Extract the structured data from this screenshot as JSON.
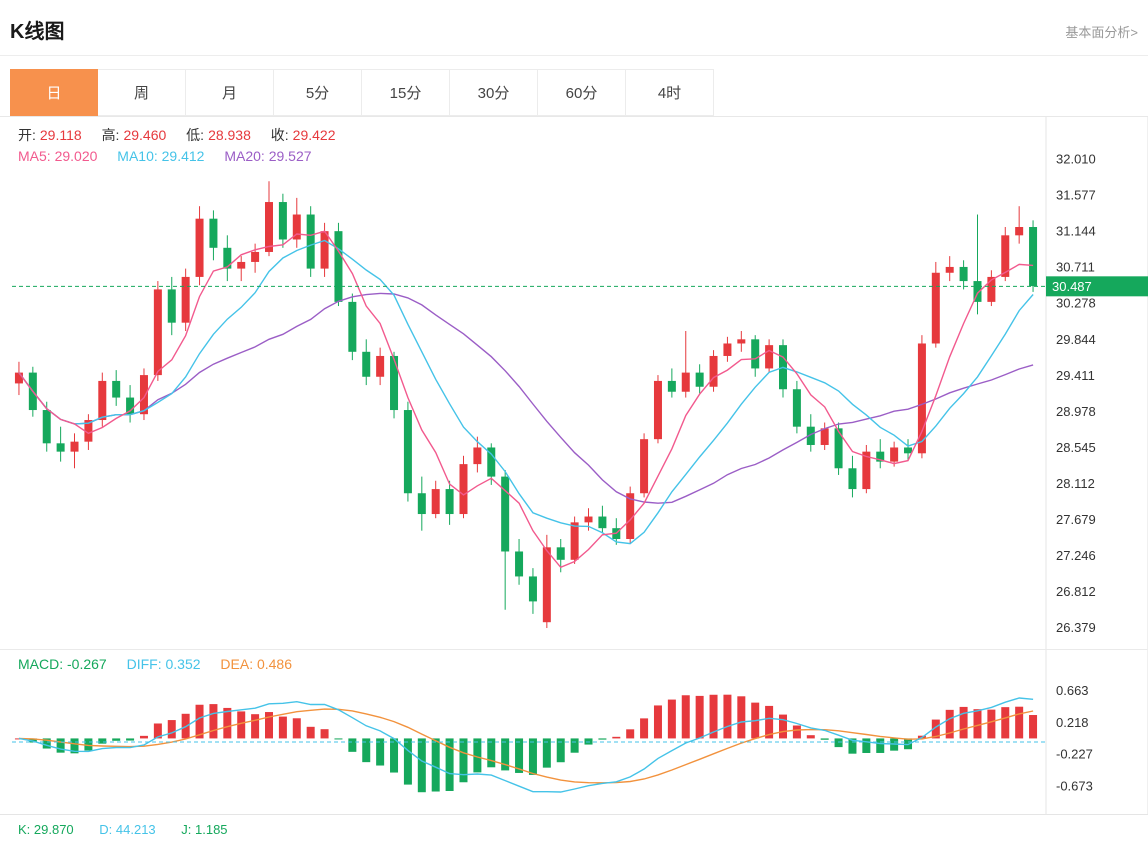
{
  "header": {
    "title": "K线图",
    "link": "基本面分析>"
  },
  "tabs": {
    "items": [
      "日",
      "周",
      "月",
      "5分",
      "15分",
      "30分",
      "60分",
      "4时"
    ],
    "active": "日"
  },
  "ohlc": {
    "open_label": "开:",
    "open": "29.118",
    "high_label": "高:",
    "high": "29.460",
    "low_label": "低:",
    "low": "28.938",
    "close_label": "收:",
    "close": "29.422"
  },
  "ma": {
    "ma5": "MA5: 29.020",
    "ma10": "MA10: 29.412",
    "ma20": "MA20: 29.527"
  },
  "macd_legend": {
    "macd": "MACD: -0.267",
    "diff": "DIFF: 0.352",
    "dea": "DEA: 0.486"
  },
  "kdj": {
    "k": "K: 29.870",
    "d": "D: 44.213",
    "j": "J: 1.185"
  },
  "price_tag": "30.487",
  "colors": {
    "red": "#e6393d",
    "green": "#15a85c",
    "pink": "#f25a8e",
    "cyan": "#45c3e8",
    "purple": "#9b5ec6",
    "orange": "#f2923d",
    "tab_orange": "#f7914d",
    "border": "#e6e6e6",
    "text": "#333333"
  },
  "chart_data": {
    "type": "candlestick",
    "title": "K线图",
    "period": "日",
    "y_axis_ticks": [
      "32.010",
      "31.577",
      "31.144",
      "30.711",
      "30.278",
      "29.844",
      "29.411",
      "28.978",
      "28.545",
      "28.112",
      "27.679",
      "27.246",
      "26.812",
      "26.379"
    ],
    "price_range": [
      26.2,
      32.45
    ],
    "last_price": 30.487,
    "overlays": [
      "MA5",
      "MA10",
      "MA20"
    ],
    "legend_values": {
      "open": 29.118,
      "high": 29.46,
      "low": 28.938,
      "close": 29.422,
      "ma5": 29.02,
      "ma10": 29.412,
      "ma20": 29.527
    },
    "candles": [
      [
        29.32,
        29.58,
        29.18,
        29.45
      ],
      [
        29.45,
        29.52,
        28.92,
        29.0
      ],
      [
        29.0,
        29.1,
        28.5,
        28.6
      ],
      [
        28.6,
        28.8,
        28.38,
        28.5
      ],
      [
        28.5,
        28.72,
        28.3,
        28.62
      ],
      [
        28.62,
        28.95,
        28.52,
        28.88
      ],
      [
        28.88,
        29.45,
        28.8,
        29.35
      ],
      [
        29.35,
        29.48,
        29.05,
        29.15
      ],
      [
        29.15,
        29.3,
        28.85,
        28.95
      ],
      [
        28.95,
        29.5,
        28.88,
        29.42
      ],
      [
        29.42,
        30.55,
        29.35,
        30.45
      ],
      [
        30.45,
        30.6,
        29.9,
        30.05
      ],
      [
        30.05,
        30.7,
        29.95,
        30.6
      ],
      [
        30.6,
        31.45,
        30.5,
        31.3
      ],
      [
        31.3,
        31.4,
        30.8,
        30.95
      ],
      [
        30.95,
        31.1,
        30.55,
        30.7
      ],
      [
        30.7,
        30.85,
        30.55,
        30.78
      ],
      [
        30.78,
        31.0,
        30.65,
        30.9
      ],
      [
        30.9,
        31.75,
        30.85,
        31.5
      ],
      [
        31.5,
        31.6,
        30.95,
        31.05
      ],
      [
        31.05,
        31.55,
        30.95,
        31.35
      ],
      [
        31.35,
        31.45,
        30.6,
        30.7
      ],
      [
        30.7,
        31.25,
        30.6,
        31.15
      ],
      [
        31.15,
        31.25,
        30.25,
        30.3
      ],
      [
        30.3,
        30.4,
        29.6,
        29.7
      ],
      [
        29.7,
        29.85,
        29.3,
        29.4
      ],
      [
        29.4,
        29.75,
        29.3,
        29.65
      ],
      [
        29.65,
        29.7,
        28.9,
        29.0
      ],
      [
        29.0,
        29.1,
        27.9,
        28.0
      ],
      [
        28.0,
        28.2,
        27.55,
        27.75
      ],
      [
        27.75,
        28.15,
        27.7,
        28.05
      ],
      [
        28.05,
        28.15,
        27.62,
        27.75
      ],
      [
        27.75,
        28.45,
        27.7,
        28.35
      ],
      [
        28.35,
        28.68,
        28.25,
        28.55
      ],
      [
        28.55,
        28.6,
        28.1,
        28.2
      ],
      [
        28.2,
        28.28,
        26.6,
        27.3
      ],
      [
        27.3,
        27.45,
        26.9,
        27.0
      ],
      [
        27.0,
        27.1,
        26.55,
        26.7
      ],
      [
        26.45,
        27.5,
        26.38,
        27.35
      ],
      [
        27.35,
        27.45,
        27.05,
        27.2
      ],
      [
        27.2,
        27.72,
        27.15,
        27.65
      ],
      [
        27.65,
        27.82,
        27.55,
        27.72
      ],
      [
        27.72,
        27.85,
        27.52,
        27.58
      ],
      [
        27.58,
        27.7,
        27.38,
        27.45
      ],
      [
        27.45,
        28.08,
        27.4,
        28.0
      ],
      [
        28.0,
        28.72,
        27.95,
        28.65
      ],
      [
        28.65,
        29.42,
        28.6,
        29.35
      ],
      [
        29.35,
        29.5,
        29.15,
        29.22
      ],
      [
        29.22,
        29.95,
        29.15,
        29.45
      ],
      [
        29.45,
        29.55,
        29.2,
        29.28
      ],
      [
        29.28,
        29.72,
        29.22,
        29.65
      ],
      [
        29.65,
        29.88,
        29.58,
        29.8
      ],
      [
        29.8,
        29.95,
        29.7,
        29.85
      ],
      [
        29.85,
        29.9,
        29.4,
        29.5
      ],
      [
        29.5,
        29.85,
        29.45,
        29.78
      ],
      [
        29.78,
        29.85,
        29.15,
        29.25
      ],
      [
        29.25,
        29.35,
        28.72,
        28.8
      ],
      [
        28.8,
        28.95,
        28.5,
        28.58
      ],
      [
        28.58,
        28.85,
        28.52,
        28.78
      ],
      [
        28.78,
        28.85,
        28.22,
        28.3
      ],
      [
        28.3,
        28.45,
        27.95,
        28.05
      ],
      [
        28.05,
        28.58,
        28.0,
        28.5
      ],
      [
        28.5,
        28.65,
        28.3,
        28.38
      ],
      [
        28.38,
        28.62,
        28.32,
        28.55
      ],
      [
        28.55,
        28.65,
        28.4,
        28.48
      ],
      [
        28.48,
        29.9,
        28.42,
        29.8
      ],
      [
        29.8,
        30.78,
        29.75,
        30.65
      ],
      [
        30.65,
        30.85,
        30.55,
        30.72
      ],
      [
        30.72,
        30.8,
        30.45,
        30.55
      ],
      [
        30.55,
        31.35,
        30.15,
        30.3
      ],
      [
        30.3,
        30.68,
        30.25,
        30.6
      ],
      [
        30.6,
        31.2,
        30.55,
        31.1
      ],
      [
        31.1,
        31.45,
        31.0,
        31.2
      ],
      [
        31.2,
        31.28,
        30.42,
        30.49
      ]
    ],
    "macd": {
      "y_ticks": [
        "0.663",
        "0.218",
        "-0.227",
        "-0.673"
      ],
      "range": [
        -1.0,
        0.9
      ],
      "dash_line_value": -0.05,
      "values_shown": {
        "macd": -0.267,
        "diff": 0.352,
        "dea": 0.486
      }
    },
    "kdj_shown": {
      "k": 29.87,
      "d": 44.213,
      "j": 1.185
    }
  }
}
